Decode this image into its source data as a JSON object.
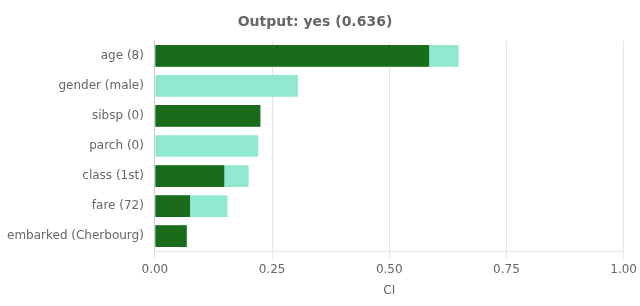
{
  "chart_data": {
    "type": "bar",
    "orientation": "horizontal",
    "title": "Output: yes (0.636)",
    "xlabel": "CI",
    "categories": [
      "age (8)",
      "gender (male)",
      "sibsp (0)",
      "parch (0)",
      "class (1st)",
      "fare (72)",
      "embarked (Cherbourg)"
    ],
    "series": [
      {
        "color": "#90e8d0",
        "values": [
          0.648,
          0.305,
          0.225,
          0.22,
          0.2,
          0.155,
          0.068
        ]
      },
      {
        "color": "#1a6b1a",
        "values": [
          0.585,
          0.0,
          0.225,
          0.0,
          0.148,
          0.075,
          0.068
        ]
      }
    ],
    "xlim": [
      0.0,
      1.0
    ],
    "xticks": [
      {
        "value": 0.0,
        "label": "0.00"
      },
      {
        "value": 0.25,
        "label": "0.25"
      },
      {
        "value": 0.5,
        "label": "0.50"
      },
      {
        "value": 0.75,
        "label": "0.75"
      },
      {
        "value": 1.0,
        "label": "1.00"
      }
    ],
    "grid": true
  }
}
